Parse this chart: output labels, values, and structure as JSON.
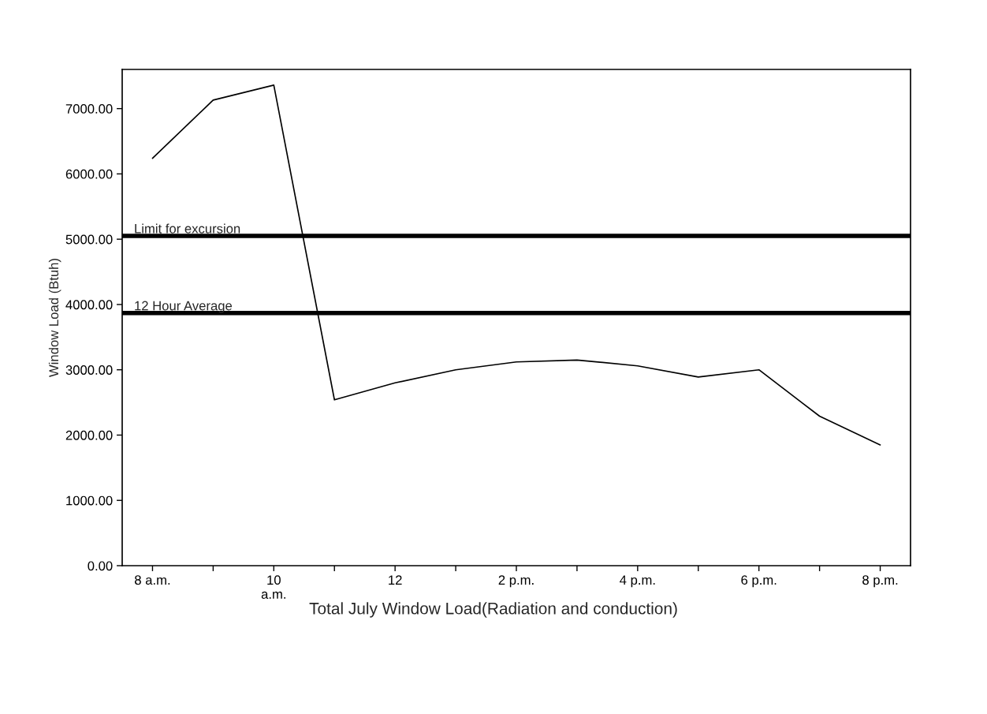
{
  "chart_data": {
    "type": "line",
    "title": "Total July Window Load(Radiation and conduction)",
    "ylabel": "Window Load (Btuh)",
    "categories": [
      "8 a.m.",
      null,
      "10\na.m.",
      null,
      "12",
      null,
      "2 p.m.",
      null,
      "4 p.m.",
      null,
      "6 p.m.",
      null,
      "8 p.m."
    ],
    "series": [
      {
        "color": "#000000",
        "values": [
          6240,
          7130,
          7360,
          2540,
          2800,
          3000,
          3120,
          3150,
          3060,
          2890,
          3000,
          2290,
          1850
        ]
      }
    ],
    "ylim": [
      0,
      7600
    ],
    "yticks": [
      {
        "value": 0,
        "label": "0.00"
      },
      {
        "value": 1000,
        "label": "1000.00"
      },
      {
        "value": 2000,
        "label": "2000.00"
      },
      {
        "value": 3000,
        "label": "3000.00"
      },
      {
        "value": 4000,
        "label": "4000.00"
      },
      {
        "value": 5000,
        "label": "5000.00"
      },
      {
        "value": 6000,
        "label": "6000.00"
      },
      {
        "value": 7000,
        "label": "7000.00"
      }
    ],
    "ref_lines": [
      {
        "axis": "y",
        "value": 5050,
        "label": "Limit for excursion",
        "color": "#000000"
      },
      {
        "axis": "y",
        "value": 3870,
        "label": "12 Hour Average",
        "color": "#000000"
      }
    ],
    "grid": false,
    "legend": false,
    "marker": "none",
    "line_style": "solid"
  }
}
